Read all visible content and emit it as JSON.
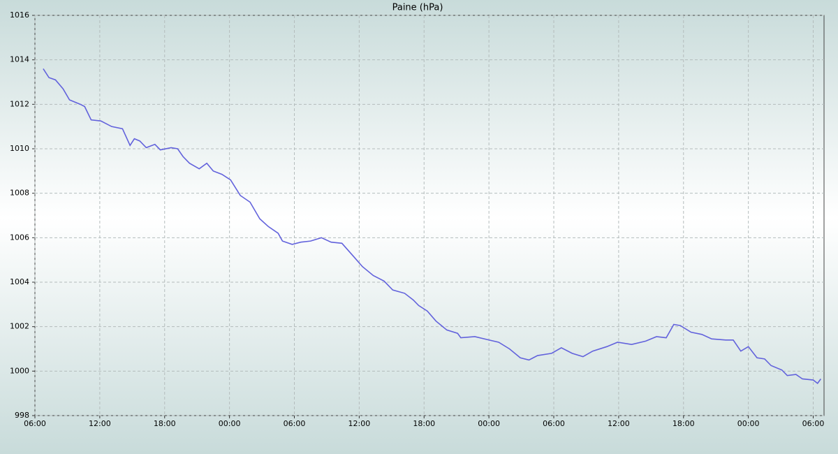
{
  "chart_data": {
    "type": "line",
    "title": "Paine (hPa)",
    "x": [
      0.77,
      1.3,
      1.9,
      2.6,
      3.2,
      4.2,
      4.6,
      5.2,
      6.1,
      7.1,
      8.1,
      8.8,
      9.2,
      9.7,
      10.3,
      11.1,
      11.6,
      12.6,
      13.2,
      13.7,
      14.3,
      15.2,
      15.9,
      16.5,
      17.3,
      18.1,
      19.0,
      19.9,
      20.8,
      21.6,
      22.5,
      22.9,
      23.8,
      24.6,
      25.5,
      26.5,
      27.4,
      28.4,
      29.4,
      30.3,
      31.3,
      32.3,
      33.1,
      34.2,
      35.0,
      35.5,
      36.3,
      37.1,
      38.1,
      39.1,
      39.4,
      40.7,
      42.0,
      42.9,
      43.9,
      44.9,
      45.7,
      46.5,
      47.8,
      48.7,
      49.7,
      50.7,
      51.6,
      52.9,
      53.9,
      55.2,
      56.5,
      57.5,
      58.4,
      59.1,
      59.7,
      60.7,
      61.7,
      62.6,
      63.9,
      64.6,
      65.3,
      66.0,
      66.8,
      67.5,
      68.1,
      69.1,
      69.6,
      70.4,
      71.0,
      72.0,
      72.4,
      72.7
    ],
    "series": [
      {
        "color": "#6262dc",
        "values": [
          1013.6,
          1013.2,
          1013.1,
          1012.7,
          1012.2,
          1012.0,
          1011.9,
          1011.3,
          1011.25,
          1011.0,
          1010.9,
          1010.15,
          1010.45,
          1010.35,
          1010.05,
          1010.2,
          1009.95,
          1010.05,
          1010.0,
          1009.65,
          1009.35,
          1009.1,
          1009.35,
          1009.0,
          1008.85,
          1008.6,
          1007.9,
          1007.6,
          1006.85,
          1006.5,
          1006.2,
          1005.85,
          1005.7,
          1005.8,
          1005.85,
          1006.0,
          1005.8,
          1005.75,
          1005.2,
          1004.7,
          1004.3,
          1004.05,
          1003.65,
          1003.5,
          1003.2,
          1002.95,
          1002.7,
          1002.25,
          1001.85,
          1001.7,
          1001.5,
          1001.55,
          1001.4,
          1001.3,
          1001.0,
          1000.6,
          1000.5,
          1000.7,
          1000.8,
          1001.05,
          1000.8,
          1000.65,
          1000.9,
          1001.1,
          1001.3,
          1001.2,
          1001.35,
          1001.55,
          1001.5,
          1002.1,
          1002.05,
          1001.75,
          1001.65,
          1001.45,
          1001.4,
          1001.4,
          1000.9,
          1001.1,
          1000.6,
          1000.55,
          1000.25,
          1000.05,
          999.8,
          999.85,
          999.65,
          999.6,
          999.45,
          999.65
        ]
      }
    ],
    "xlim": [
      0,
      73
    ],
    "xticks": [
      {
        "value": 0,
        "label": "06:00"
      },
      {
        "value": 6,
        "label": "12:00"
      },
      {
        "value": 12,
        "label": "18:00"
      },
      {
        "value": 18,
        "label": "00:00"
      },
      {
        "value": 24,
        "label": "06:00"
      },
      {
        "value": 30,
        "label": "12:00"
      },
      {
        "value": 36,
        "label": "18:00"
      },
      {
        "value": 42,
        "label": "00:00"
      },
      {
        "value": 48,
        "label": "06:00"
      },
      {
        "value": 54,
        "label": "12:00"
      },
      {
        "value": 60,
        "label": "18:00"
      },
      {
        "value": 66,
        "label": "00:00"
      },
      {
        "value": 72,
        "label": "06:00"
      }
    ],
    "ylim": [
      998,
      1016
    ],
    "yticks": [
      998,
      1000,
      1002,
      1004,
      1006,
      1008,
      1010,
      1012,
      1014,
      1016
    ],
    "grid": true
  }
}
